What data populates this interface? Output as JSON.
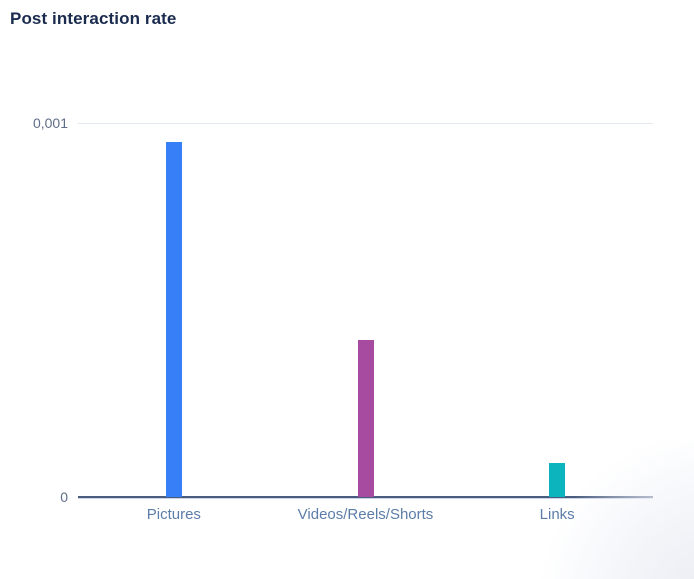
{
  "header": {
    "title": "Post interaction rate"
  },
  "chart_data": {
    "type": "bar",
    "title": "Post interaction rate",
    "categories": [
      "Pictures",
      "Videos/Reels/Shorts",
      "Links"
    ],
    "values": [
      0.00095,
      0.00042,
      9e-05
    ],
    "bar_colors": [
      "#377ff7",
      "#a74ba0",
      "#0cb4be"
    ],
    "xlabel": "",
    "ylabel": "",
    "ylim": [
      0,
      0.001
    ],
    "ytick_values": [
      0,
      0.001
    ],
    "ytick_labels": [
      "0",
      "0,001"
    ],
    "decimal_separator": ",",
    "grid": "single horizontal gridline at 0.001 only",
    "legend": "none"
  },
  "colors": {
    "title_text": "#1a2b4e",
    "axis_tick_text": "#5f6e88",
    "category_label_text": "#5c7da9",
    "gridline": "#e3e8ee",
    "axis_line": "#4a5c7d",
    "background": "#ffffff"
  }
}
